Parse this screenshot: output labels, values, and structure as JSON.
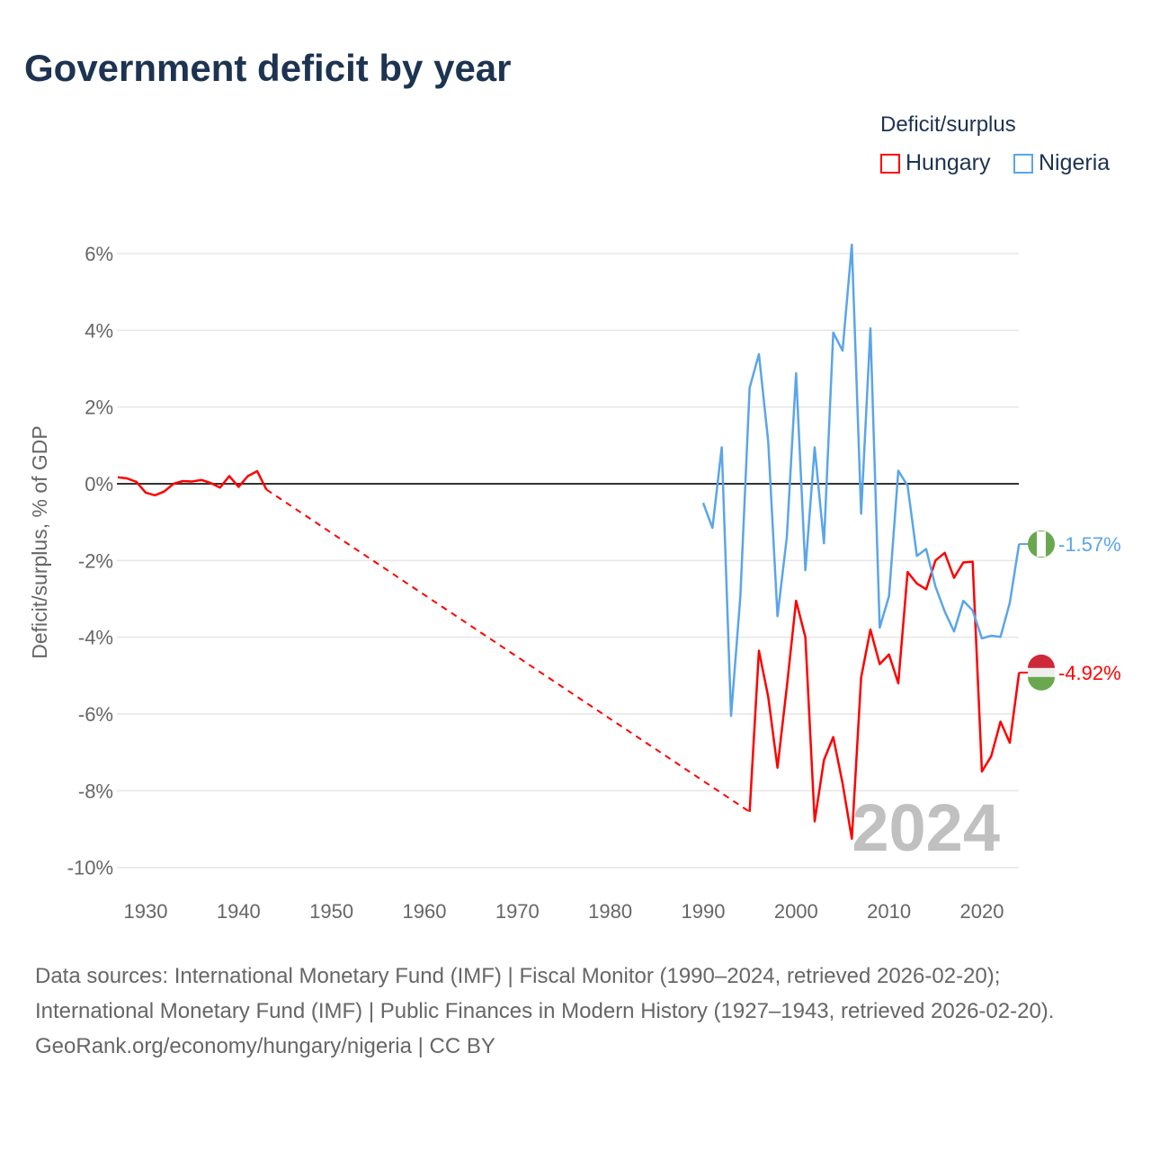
{
  "title": "Government deficit by year",
  "legend": {
    "title": "Deficit/surplus",
    "items": [
      "Hungary",
      "Nigeria"
    ]
  },
  "colors": {
    "Hungary": "#ff0000",
    "Nigeria": "#5aa5ea"
  },
  "footer": {
    "line1": "Data sources: International Monetary Fund (IMF) | Fiscal Monitor (1990–2024, retrieved 2026-02-20);",
    "line2": "International Monetary Fund (IMF) | Public Finances in Modern History (1927–1943, retrieved 2026-02-20).",
    "line3": "GeoRank.org/economy/hungary/nigeria | CC BY"
  },
  "chart_data": {
    "type": "line",
    "title": "Government deficit by year",
    "xlabel": "",
    "ylabel": "Deficit/surplus, % of GDP",
    "xlim": [
      1927,
      2024
    ],
    "ylim": [
      -10,
      6.5
    ],
    "xticks": [
      "1930",
      "1940",
      "1950",
      "1960",
      "1970",
      "1980",
      "1990",
      "2000",
      "2010",
      "2020"
    ],
    "yticks": [
      "6%",
      "4%",
      "2%",
      "0%",
      "-2%",
      "-4%",
      "-6%",
      "-8%",
      "-10%"
    ],
    "year_watermark": "2024",
    "series": [
      {
        "name": "Hungary",
        "end_label": "-4.92%",
        "segments": [
          {
            "x": [
              1927,
              1928,
              1929,
              1930,
              1931,
              1932,
              1933,
              1934,
              1935,
              1936,
              1937,
              1938,
              1939,
              1940,
              1941,
              1942,
              1943
            ],
            "y": [
              0.17,
              0.14,
              0.05,
              -0.23,
              -0.3,
              -0.2,
              0.0,
              0.07,
              0.06,
              0.1,
              0.02,
              -0.1,
              0.2,
              -0.08,
              0.2,
              0.33,
              -0.15
            ]
          },
          {
            "x": [
              1995,
              1996,
              1997,
              1998,
              1999,
              2000,
              2001,
              2002,
              2003,
              2004,
              2005,
              2006,
              2007,
              2008,
              2009,
              2010,
              2011,
              2012,
              2013,
              2014,
              2015,
              2016,
              2017,
              2018,
              2019,
              2020,
              2021,
              2022,
              2023,
              2024
            ],
            "y": [
              -8.55,
              -4.35,
              -5.55,
              -7.4,
              -5.3,
              -3.05,
              -4.0,
              -8.8,
              -7.2,
              -6.6,
              -7.8,
              -9.25,
              -5.05,
              -3.8,
              -4.7,
              -4.45,
              -5.2,
              -2.3,
              -2.6,
              -2.75,
              -2.0,
              -1.8,
              -2.45,
              -2.05,
              -2.03,
              -7.5,
              -7.1,
              -6.2,
              -6.75,
              -4.92
            ]
          }
        ]
      },
      {
        "name": "Nigeria",
        "end_label": "-1.57%",
        "segments": [
          {
            "x": [
              1990,
              1991,
              1992,
              1993,
              1994,
              1995,
              1996,
              1997,
              1998,
              1999,
              2000,
              2001,
              2002,
              2003,
              2004,
              2005,
              2006,
              2007,
              2008,
              2009,
              2010,
              2011,
              2012,
              2013,
              2014,
              2015,
              2016,
              2017,
              2018,
              2019,
              2020,
              2021,
              2022,
              2023,
              2024
            ],
            "y": [
              -0.5,
              -1.15,
              0.95,
              -6.05,
              -2.95,
              2.5,
              3.38,
              1.1,
              -3.45,
              -1.4,
              2.88,
              -2.25,
              0.95,
              -1.55,
              3.94,
              3.47,
              6.23,
              -0.78,
              4.05,
              -3.75,
              -2.93,
              0.34,
              -0.05,
              -1.88,
              -1.7,
              -2.68,
              -3.33,
              -3.85,
              -3.05,
              -3.3,
              -4.03,
              -3.96,
              -3.99,
              -3.1,
              -1.57
            ]
          }
        ]
      }
    ]
  }
}
